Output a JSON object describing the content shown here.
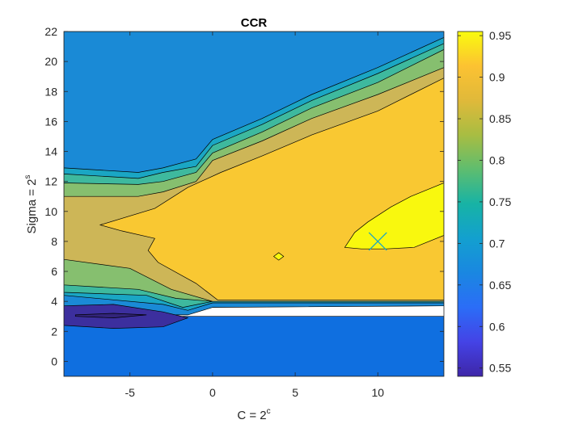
{
  "chart_data": {
    "type": "heatmap",
    "subtype": "filled-contour",
    "title": "CCR",
    "xlabel": {
      "base": "C = 2",
      "sup": "c"
    },
    "ylabel": {
      "base": "Sigma = 2",
      "sup": "s"
    },
    "xlim": [
      -9,
      14
    ],
    "ylim": [
      -1,
      22
    ],
    "x_ticks": [
      -5,
      0,
      5,
      10
    ],
    "x_tick_labels": [
      "-5",
      "0",
      "5",
      "10"
    ],
    "y_ticks": [
      0,
      2,
      4,
      6,
      8,
      10,
      12,
      14,
      16,
      18,
      20,
      22
    ],
    "y_tick_labels": [
      "0",
      "2",
      "4",
      "6",
      "8",
      "10",
      "12",
      "14",
      "16",
      "18",
      "20",
      "22"
    ],
    "colorbar": {
      "min": 0.54,
      "max": 0.955,
      "ticks": [
        0.55,
        0.6,
        0.65,
        0.7,
        0.75,
        0.8,
        0.85,
        0.9,
        0.95
      ],
      "tick_labels": [
        "0.55",
        "0.6",
        "0.65",
        "0.7",
        "0.75",
        "0.8",
        "0.85",
        "0.9",
        "0.95"
      ],
      "colormap": "parula"
    },
    "regions": [
      {
        "level": 0.6,
        "color": "#0f6fe0",
        "points": [
          [
            -9,
            -1
          ],
          [
            14,
            -1
          ],
          [
            14,
            3
          ],
          [
            -9,
            3
          ]
        ]
      },
      {
        "level": 0.65,
        "color": "#1a8ad6",
        "points": [
          [
            -9,
            3.1
          ],
          [
            -1.5,
            3.1
          ],
          [
            0,
            3.6
          ],
          [
            14,
            3.7
          ],
          [
            14,
            22
          ],
          [
            -9,
            22
          ]
        ]
      },
      {
        "level": 0.7,
        "color": "#1aa6c4",
        "points": [
          [
            -9,
            12.9
          ],
          [
            -4.5,
            12.6
          ],
          [
            -3,
            12.9
          ],
          [
            -1,
            13.5
          ],
          [
            0,
            14.8
          ],
          [
            3,
            16.2
          ],
          [
            6,
            17.8
          ],
          [
            10,
            19.6
          ],
          [
            14,
            21.6
          ],
          [
            14,
            3.9
          ],
          [
            0,
            3.9
          ],
          [
            -1.5,
            3.4
          ],
          [
            -3,
            3.8
          ],
          [
            -6,
            4.1
          ],
          [
            -9,
            4.4
          ]
        ]
      },
      {
        "level": 0.75,
        "color": "#3eb99e",
        "points": [
          [
            -9,
            12.5
          ],
          [
            -4.5,
            12.2
          ],
          [
            -3,
            12.6
          ],
          [
            -1,
            13
          ],
          [
            0,
            14.4
          ],
          [
            3,
            15.8
          ],
          [
            6,
            17.4
          ],
          [
            10,
            19.2
          ],
          [
            14,
            21.2
          ],
          [
            14,
            4
          ],
          [
            0,
            4
          ],
          [
            -1.8,
            3.6
          ],
          [
            -4,
            4.4
          ],
          [
            -9,
            4.6
          ]
        ]
      },
      {
        "level": 0.8,
        "color": "#86bf6f",
        "points": [
          [
            -9,
            11.9
          ],
          [
            -4.5,
            11.8
          ],
          [
            -3,
            12
          ],
          [
            -1,
            12.6
          ],
          [
            0,
            13.9
          ],
          [
            3,
            15.3
          ],
          [
            6,
            16.9
          ],
          [
            10,
            18.6
          ],
          [
            14,
            20.8
          ],
          [
            14,
            4
          ],
          [
            0,
            4
          ],
          [
            -2.2,
            4.2
          ],
          [
            -4.5,
            4.8
          ],
          [
            -9,
            5.1
          ]
        ]
      },
      {
        "level": 0.85,
        "color": "#cdb657",
        "points": [
          [
            -9,
            11
          ],
          [
            -4.5,
            11
          ],
          [
            -3,
            11.3
          ],
          [
            -1,
            12
          ],
          [
            0,
            13.4
          ],
          [
            3,
            14.7
          ],
          [
            6,
            16.2
          ],
          [
            10,
            17.8
          ],
          [
            14,
            19.6
          ],
          [
            14,
            4
          ],
          [
            0,
            4
          ],
          [
            -2.5,
            4.8
          ],
          [
            -5,
            6.2
          ],
          [
            -9,
            6.8
          ]
        ]
      },
      {
        "level": 0.9,
        "color": "#f9c832",
        "points": [
          [
            -6.8,
            9.1
          ],
          [
            -3.5,
            10.2
          ],
          [
            -1.5,
            11.6
          ],
          [
            0.5,
            12.6
          ],
          [
            3,
            13.7
          ],
          [
            6,
            15.1
          ],
          [
            10,
            16.7
          ],
          [
            14,
            18.9
          ],
          [
            14,
            4.1
          ],
          [
            0.3,
            4.1
          ],
          [
            -1,
            5.2
          ],
          [
            -3.3,
            6.6
          ],
          [
            -3.9,
            7.4
          ],
          [
            -3.5,
            8.2
          ],
          [
            -5.5,
            8.7
          ]
        ]
      },
      {
        "level": 0.95,
        "color": "#f9f80e",
        "points": [
          [
            8,
            7.6
          ],
          [
            8.6,
            8.6
          ],
          [
            9.4,
            9.3
          ],
          [
            10.8,
            10.3
          ],
          [
            12,
            11
          ],
          [
            14,
            11.9
          ],
          [
            14,
            8.4
          ],
          [
            12.2,
            7.6
          ],
          [
            10.5,
            7.5
          ],
          [
            9,
            7.5
          ]
        ]
      },
      {
        "level": 0.95,
        "color": "#f9f80e",
        "points": [
          [
            3.7,
            7.0
          ],
          [
            4.0,
            7.25
          ],
          [
            4.3,
            7.0
          ],
          [
            4.0,
            6.75
          ]
        ]
      },
      {
        "level": 0.55,
        "color": "#3c2f9e",
        "points": [
          [
            -9,
            3.7
          ],
          [
            -6,
            3.8
          ],
          [
            -3,
            3.3
          ],
          [
            -1.5,
            2.9
          ],
          [
            -3,
            2.3
          ],
          [
            -6,
            2.2
          ],
          [
            -9,
            2.4
          ]
        ]
      },
      {
        "level": 0.545,
        "color": "#32247a",
        "points": [
          [
            -8.3,
            3.1
          ],
          [
            -6,
            3.2
          ],
          [
            -4,
            3.1
          ],
          [
            -6,
            2.9
          ],
          [
            -8.3,
            3.0
          ]
        ]
      }
    ],
    "marker": {
      "shape": "x",
      "x": 10,
      "y": 8,
      "color": "#1aa6c4"
    }
  }
}
